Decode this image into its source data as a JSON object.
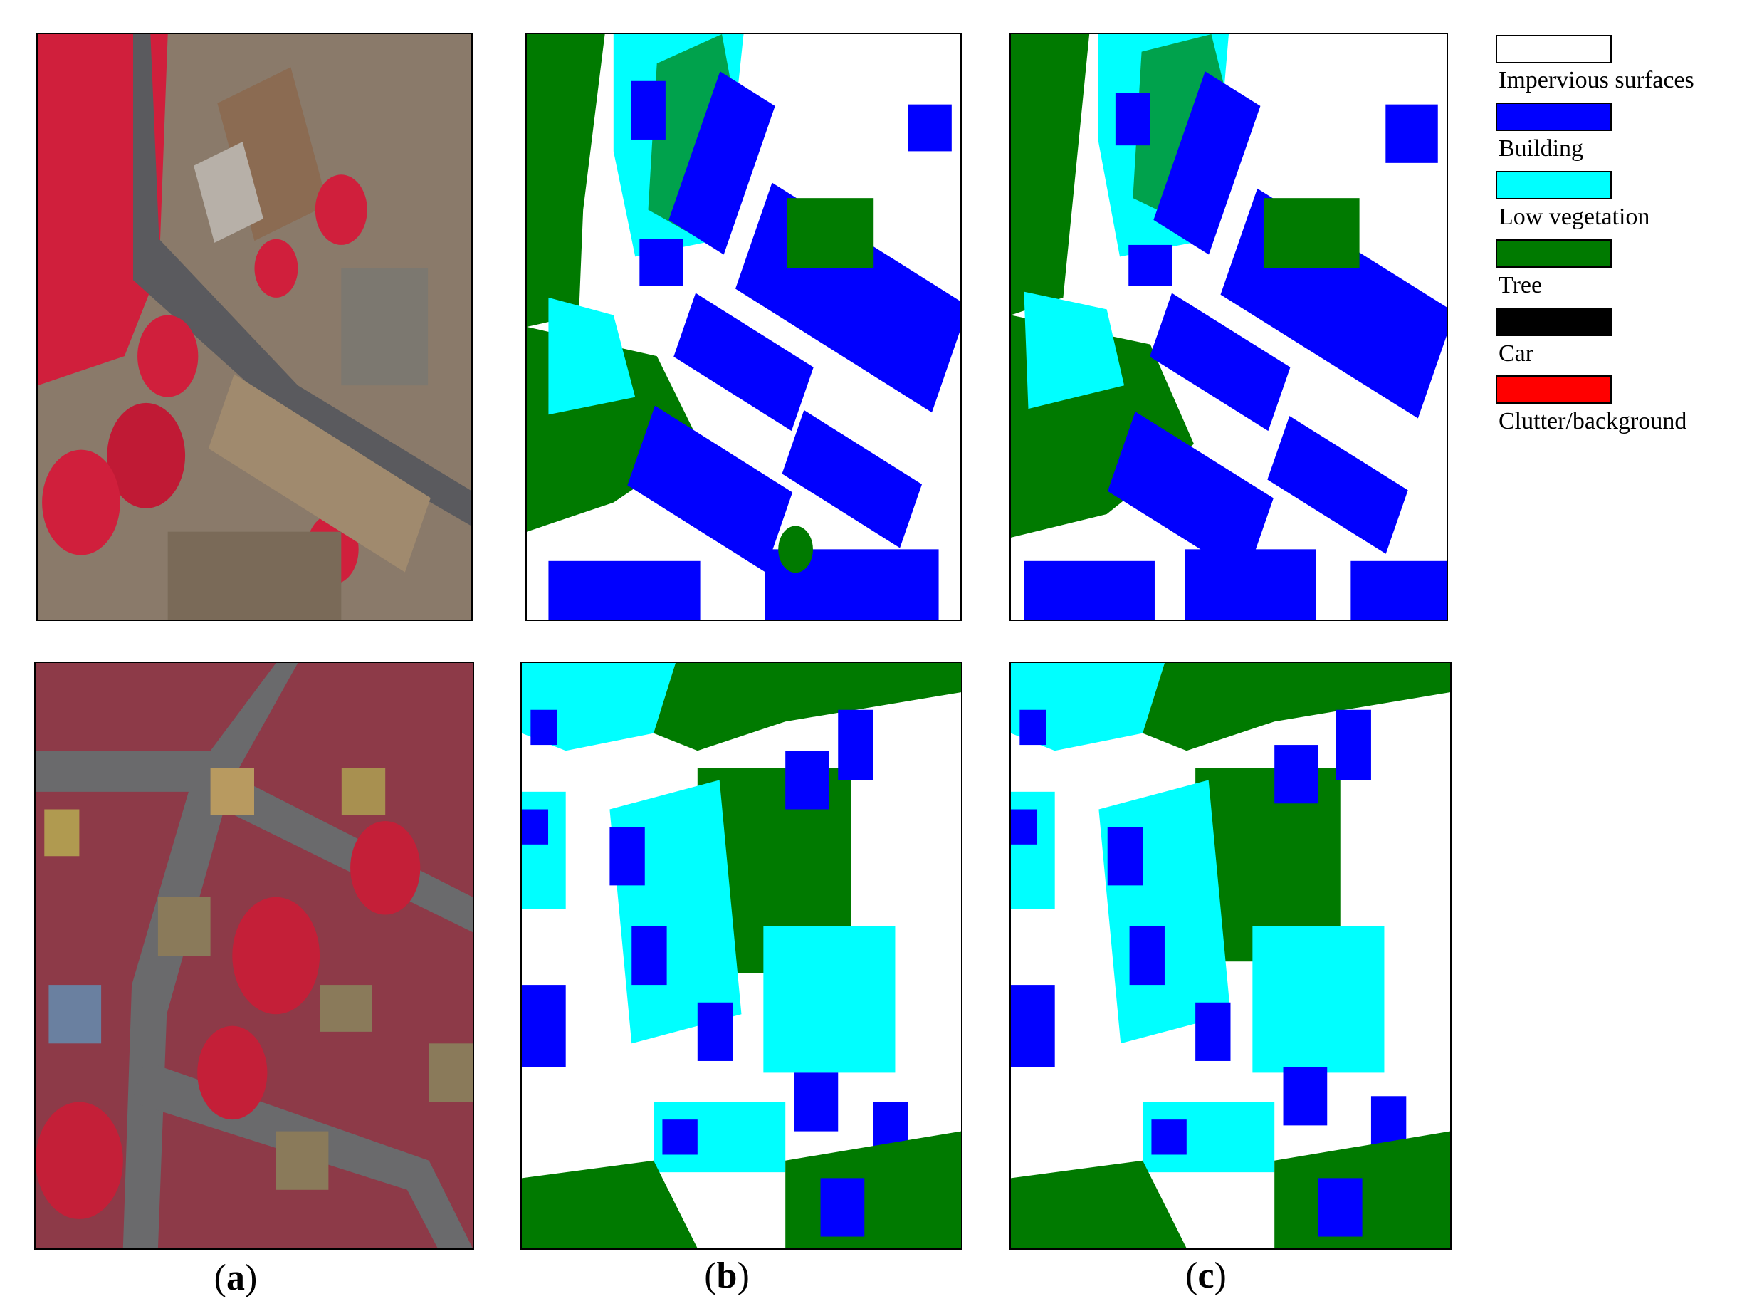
{
  "captions": {
    "a": {
      "open": "(",
      "letter": "a",
      "close": ")"
    },
    "b": {
      "open": "(",
      "letter": "b",
      "close": ")"
    },
    "c": {
      "open": "(",
      "letter": "c",
      "close": ")"
    }
  },
  "legend": [
    {
      "label": "Impervious surfaces",
      "color": "#ffffff"
    },
    {
      "label": "Building",
      "color": "#0000ff"
    },
    {
      "label": "Low vegetation",
      "color": "#00ffff"
    },
    {
      "label": "Tree",
      "color": "#007a00"
    },
    {
      "label": "Car",
      "color": "#000000"
    },
    {
      "label": "Clutter/background",
      "color": "#ff0000"
    }
  ]
}
